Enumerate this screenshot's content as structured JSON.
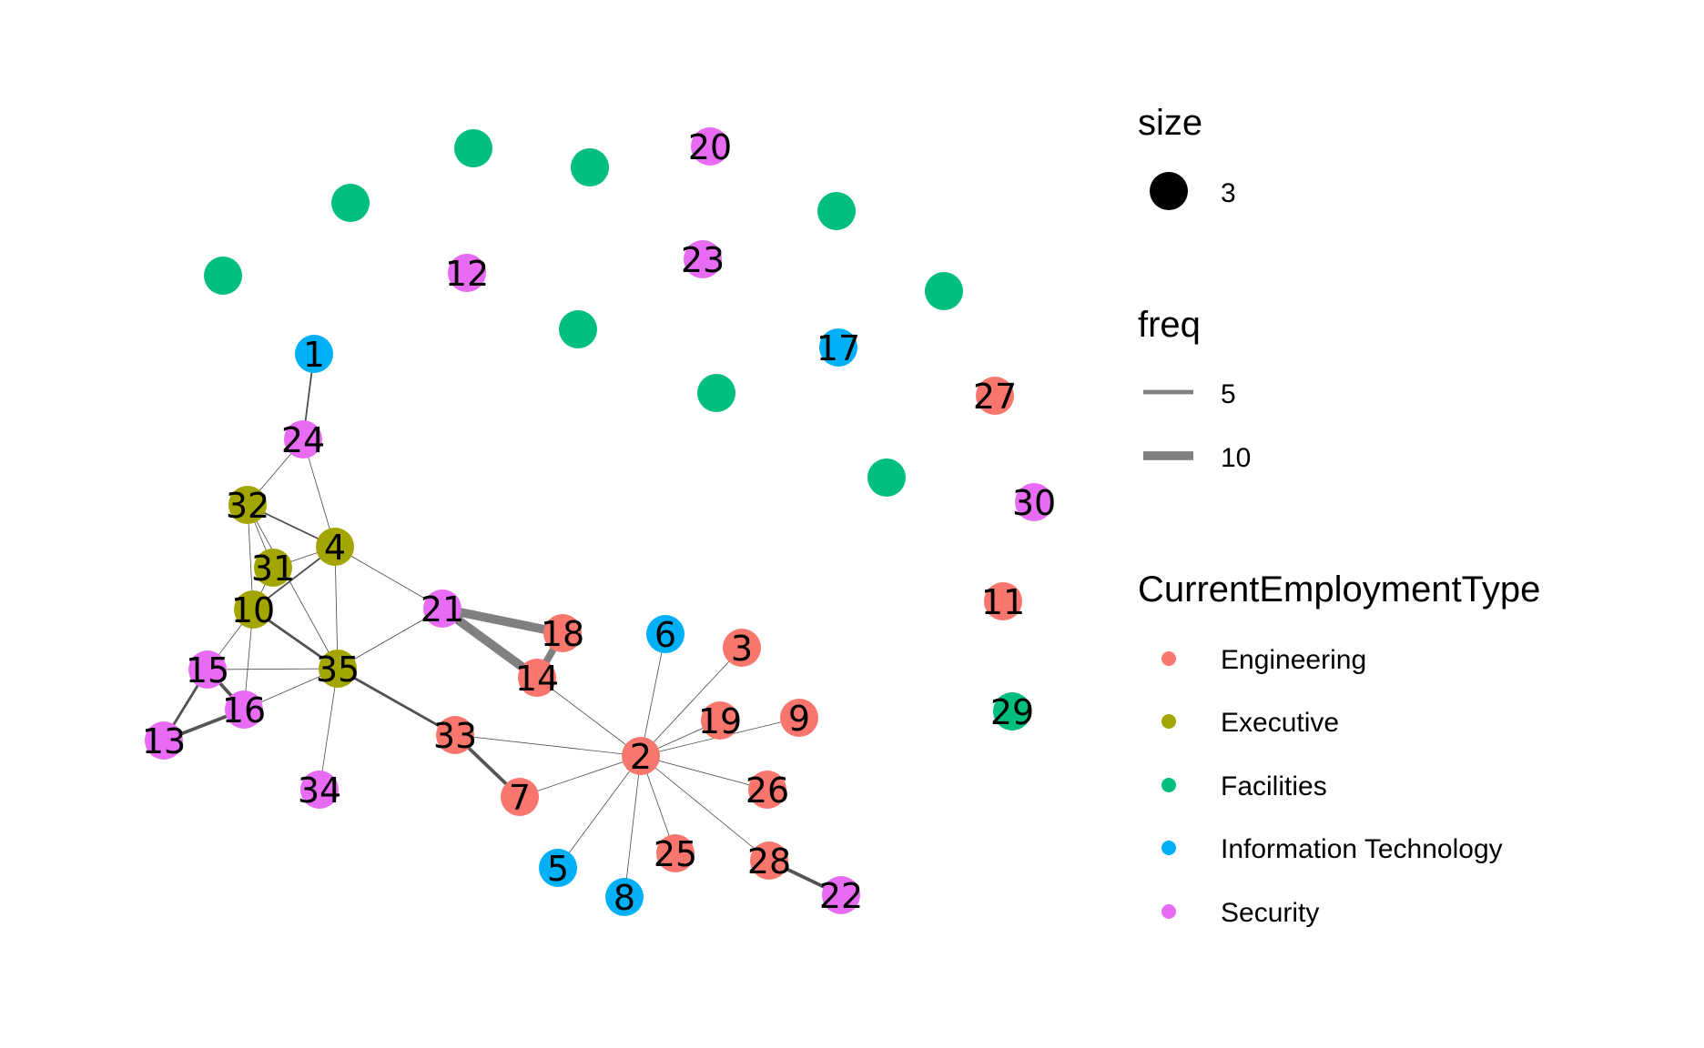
{
  "graph": {
    "colors": {
      "Engineering": "#F8766D",
      "Executive": "#A3A500",
      "Facilities": "#00BF7D",
      "Information Technology": "#00B0F6",
      "Security": "#E76BF3",
      "edge": "#808080"
    },
    "nodes": [
      {
        "id": "1",
        "label": "1",
        "group": "Information Technology"
      },
      {
        "id": "2",
        "label": "2",
        "group": "Engineering"
      },
      {
        "id": "3",
        "label": "3",
        "group": "Engineering"
      },
      {
        "id": "4",
        "label": "4",
        "group": "Executive"
      },
      {
        "id": "5",
        "label": "5",
        "group": "Information Technology"
      },
      {
        "id": "6",
        "label": "6",
        "group": "Information Technology"
      },
      {
        "id": "7",
        "label": "7",
        "group": "Engineering"
      },
      {
        "id": "8",
        "label": "8",
        "group": "Information Technology"
      },
      {
        "id": "9",
        "label": "9",
        "group": "Engineering"
      },
      {
        "id": "10",
        "label": "10",
        "group": "Executive"
      },
      {
        "id": "11",
        "label": "11",
        "group": "Engineering"
      },
      {
        "id": "12",
        "label": "12",
        "group": "Security"
      },
      {
        "id": "13",
        "label": "13",
        "group": "Security"
      },
      {
        "id": "14",
        "label": "14",
        "group": "Engineering"
      },
      {
        "id": "15",
        "label": "15",
        "group": "Security"
      },
      {
        "id": "16",
        "label": "16",
        "group": "Security"
      },
      {
        "id": "17",
        "label": "17",
        "group": "Information Technology"
      },
      {
        "id": "18",
        "label": "18",
        "group": "Engineering"
      },
      {
        "id": "19",
        "label": "19",
        "group": "Engineering"
      },
      {
        "id": "20",
        "label": "20",
        "group": "Security"
      },
      {
        "id": "21",
        "label": "21",
        "group": "Security"
      },
      {
        "id": "22",
        "label": "22",
        "group": "Security"
      },
      {
        "id": "23",
        "label": "23",
        "group": "Security"
      },
      {
        "id": "24",
        "label": "24",
        "group": "Security"
      },
      {
        "id": "25",
        "label": "25",
        "group": "Engineering"
      },
      {
        "id": "26",
        "label": "26",
        "group": "Engineering"
      },
      {
        "id": "27",
        "label": "27",
        "group": "Engineering"
      },
      {
        "id": "28",
        "label": "28",
        "group": "Engineering"
      },
      {
        "id": "29",
        "label": "29",
        "group": "Facilities"
      },
      {
        "id": "30",
        "label": "30",
        "group": "Security"
      },
      {
        "id": "31",
        "label": "31",
        "group": "Executive"
      },
      {
        "id": "32",
        "label": "32",
        "group": "Executive"
      },
      {
        "id": "33",
        "label": "33",
        "group": "Engineering"
      },
      {
        "id": "34",
        "label": "34",
        "group": "Security"
      },
      {
        "id": "35",
        "label": "35",
        "group": "Executive"
      },
      {
        "id": "f1",
        "label": "",
        "group": "Facilities"
      },
      {
        "id": "f2",
        "label": "",
        "group": "Facilities"
      },
      {
        "id": "f3",
        "label": "",
        "group": "Facilities"
      },
      {
        "id": "f4",
        "label": "",
        "group": "Facilities"
      },
      {
        "id": "f5",
        "label": "",
        "group": "Facilities"
      },
      {
        "id": "f6",
        "label": "",
        "group": "Facilities"
      },
      {
        "id": "f7",
        "label": "",
        "group": "Facilities"
      },
      {
        "id": "f8",
        "label": "",
        "group": "Facilities"
      },
      {
        "id": "f9",
        "label": "",
        "group": "Facilities"
      }
    ],
    "edges": [
      {
        "source": "1",
        "target": "24",
        "freq": 2
      },
      {
        "source": "24",
        "target": "32",
        "freq": 1
      },
      {
        "source": "24",
        "target": "4",
        "freq": 1
      },
      {
        "source": "32",
        "target": "4",
        "freq": 2
      },
      {
        "source": "32",
        "target": "31",
        "freq": 1
      },
      {
        "source": "32",
        "target": "10",
        "freq": 1
      },
      {
        "source": "32",
        "target": "35",
        "freq": 1
      },
      {
        "source": "4",
        "target": "31",
        "freq": 1
      },
      {
        "source": "4",
        "target": "10",
        "freq": 2
      },
      {
        "source": "4",
        "target": "35",
        "freq": 1
      },
      {
        "source": "4",
        "target": "21",
        "freq": 1
      },
      {
        "source": "31",
        "target": "10",
        "freq": 1
      },
      {
        "source": "10",
        "target": "35",
        "freq": 3
      },
      {
        "source": "10",
        "target": "15",
        "freq": 1
      },
      {
        "source": "10",
        "target": "16",
        "freq": 1
      },
      {
        "source": "15",
        "target": "35",
        "freq": 1
      },
      {
        "source": "15",
        "target": "16",
        "freq": 4
      },
      {
        "source": "15",
        "target": "13",
        "freq": 3
      },
      {
        "source": "16",
        "target": "13",
        "freq": 4
      },
      {
        "source": "16",
        "target": "35",
        "freq": 1
      },
      {
        "source": "35",
        "target": "34",
        "freq": 1
      },
      {
        "source": "35",
        "target": "21",
        "freq": 1
      },
      {
        "source": "35",
        "target": "33",
        "freq": 3
      },
      {
        "source": "21",
        "target": "18",
        "freq": 10
      },
      {
        "source": "21",
        "target": "14",
        "freq": 10
      },
      {
        "source": "14",
        "target": "18",
        "freq": 8
      },
      {
        "source": "14",
        "target": "2",
        "freq": 1
      },
      {
        "source": "33",
        "target": "7",
        "freq": 4
      },
      {
        "source": "33",
        "target": "2",
        "freq": 1
      },
      {
        "source": "2",
        "target": "6",
        "freq": 1
      },
      {
        "source": "2",
        "target": "3",
        "freq": 1
      },
      {
        "source": "2",
        "target": "19",
        "freq": 1
      },
      {
        "source": "2",
        "target": "9",
        "freq": 1
      },
      {
        "source": "2",
        "target": "26",
        "freq": 1
      },
      {
        "source": "2",
        "target": "28",
        "freq": 1
      },
      {
        "source": "2",
        "target": "25",
        "freq": 1
      },
      {
        "source": "2",
        "target": "8",
        "freq": 1
      },
      {
        "source": "2",
        "target": "5",
        "freq": 1
      },
      {
        "source": "2",
        "target": "7",
        "freq": 1
      },
      {
        "source": "28",
        "target": "22",
        "freq": 4
      }
    ]
  },
  "legend": {
    "size": {
      "title": "size",
      "value_label": "3"
    },
    "freq": {
      "title": "freq",
      "items": [
        {
          "label": "5",
          "freq": 5
        },
        {
          "label": "10",
          "freq": 10
        }
      ]
    },
    "type": {
      "title": "CurrentEmploymentType",
      "items": [
        {
          "label": "Engineering",
          "group": "Engineering"
        },
        {
          "label": "Executive",
          "group": "Executive"
        },
        {
          "label": "Facilities",
          "group": "Facilities"
        },
        {
          "label": "Information Technology",
          "group": "Information Technology"
        },
        {
          "label": "Security",
          "group": "Security"
        }
      ]
    }
  }
}
